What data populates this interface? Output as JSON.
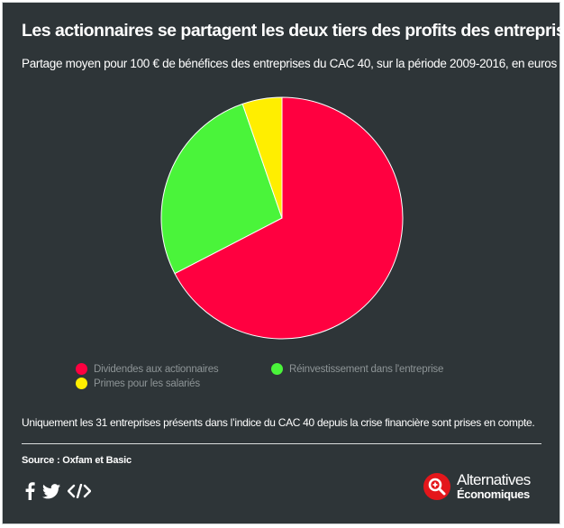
{
  "header": {
    "title": "Les actionnaires se partagent les deux tiers des profits des entreprises",
    "subtitle": "Partage moyen pour 100 € de bénéfices des entreprises du CAC 40, sur la période 2009-2016, en euros"
  },
  "chart_data": {
    "type": "pie",
    "slices": [
      {
        "label": "Dividendes aux actionnaires",
        "value": 67.4,
        "color": "#ff0040"
      },
      {
        "label": "Réinvestissement dans l'entreprise",
        "value": 27.3,
        "color": "#4af43a"
      },
      {
        "label": "Primes pour les salariés",
        "value": 5.3,
        "color": "#ffee00"
      }
    ],
    "legend_position": "bottom"
  },
  "footer": {
    "note": "Uniquement les 31 entreprises présents dans l’indice du CAC 40 depuis la crise financière sont prises en compte.",
    "source": "Source : Oxfam et Basic"
  },
  "share": {
    "icons": [
      "facebook-icon",
      "twitter-icon",
      "embed-code-icon"
    ]
  },
  "logo": {
    "line1": "Alternatives",
    "line2": "Économiques",
    "color": "#e4161b"
  }
}
